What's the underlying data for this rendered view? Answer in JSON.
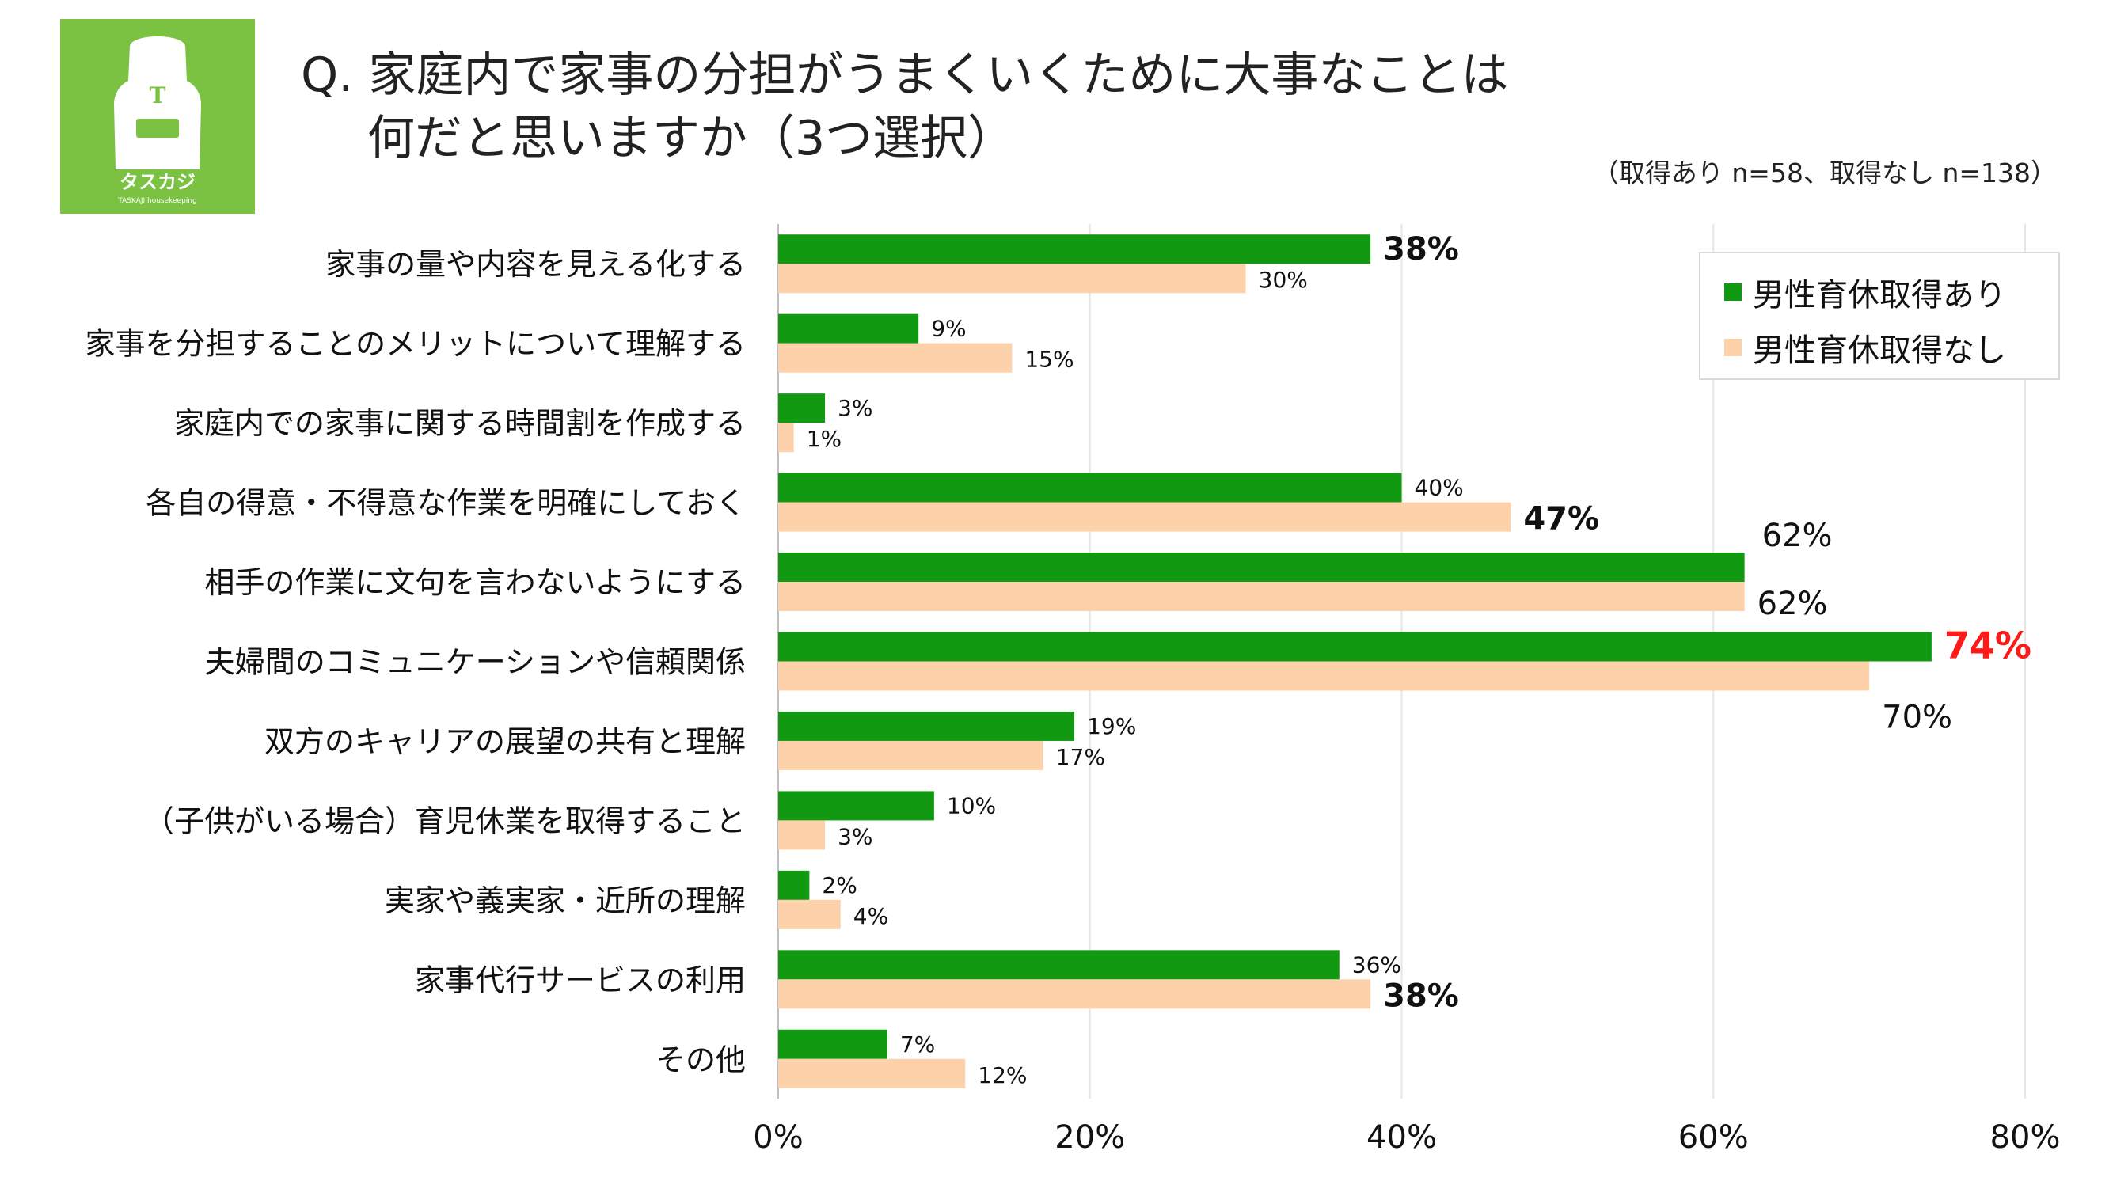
{
  "logo": {
    "initial": "T",
    "name": "タスカジ",
    "tagline": "TASKAJI housekeeping"
  },
  "title": {
    "line1": "Q. 家庭内で家事の分担がうまくいくために大事なことは",
    "line2": "何だと思いますか（3つ選択）"
  },
  "sample_note": "（取得あり n=58、取得なし n=138）",
  "colors": {
    "with": "#119a11",
    "without": "#fdd1aa",
    "highlight": "#ff1a1a",
    "grid": "#e6e6e6",
    "logo_bg": "#7bc142"
  },
  "chart_data": {
    "type": "bar",
    "orientation": "horizontal",
    "title": "Q. 家庭内で家事の分担がうまくいくために大事なことは 何だと思いますか（3つ選択）",
    "categories": [
      "家事の量や内容を見える化する",
      "家事を分担することのメリットについて理解する",
      "家庭内での家事に関する時間割を作成する",
      "各自の得意・不得意な作業を明確にしておく",
      "相手の作業に文句を言わないようにする",
      "夫婦間のコミュニケーションや信頼関係",
      "双方のキャリアの展望の共有と理解",
      "（子供がいる場合）育児休業を取得すること",
      "実家や義実家・近所の理解",
      "家事代行サービスの利用",
      "その他"
    ],
    "series": [
      {
        "name": "男性育休取得あり",
        "values": [
          38,
          9,
          3,
          40,
          62,
          74,
          19,
          10,
          2,
          36,
          7
        ]
      },
      {
        "name": "男性育休取得なし",
        "values": [
          30,
          15,
          1,
          47,
          62,
          70,
          17,
          3,
          4,
          38,
          12
        ]
      }
    ],
    "value_labels": [
      [
        "38%",
        "9%",
        "3%",
        "40%",
        "62%",
        "74%",
        "19%",
        "10%",
        "2%",
        "36%",
        "7%"
      ],
      [
        "30%",
        "15%",
        "1%",
        "47%",
        "62%",
        "70%",
        "17%",
        "3%",
        "4%",
        "38%",
        "12%"
      ]
    ],
    "xlim": [
      0,
      80
    ],
    "xticks": [
      0,
      20,
      40,
      60,
      80
    ],
    "xtick_labels": [
      "0%",
      "20%",
      "40%",
      "60%",
      "80%"
    ],
    "grid": true,
    "legend": "top-right"
  }
}
